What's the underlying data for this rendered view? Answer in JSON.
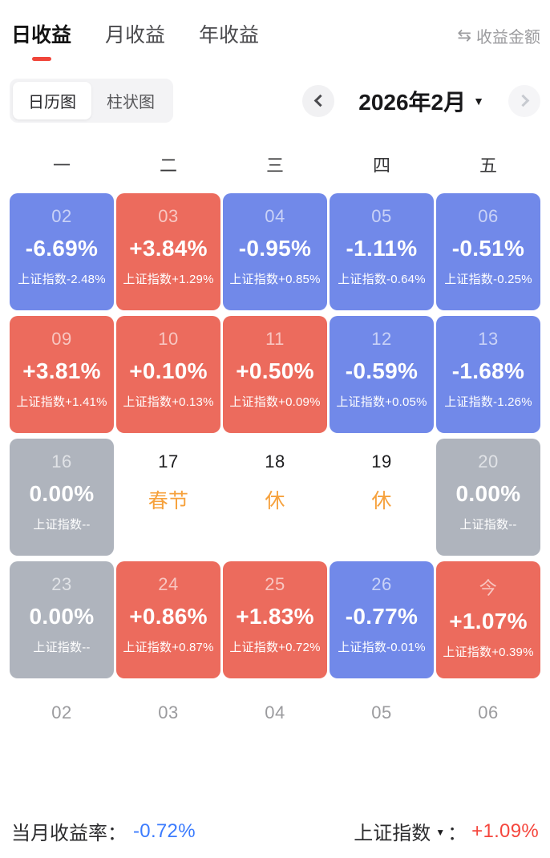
{
  "tabs": [
    {
      "label": "日收益",
      "active": true
    },
    {
      "label": "月收益",
      "active": false
    },
    {
      "label": "年收益",
      "active": false
    }
  ],
  "header": {
    "amount_toggle": {
      "icon_glyph": "⇆",
      "label": "收益金额"
    }
  },
  "view_toggle": {
    "options": [
      "日历图",
      "柱状图"
    ],
    "selected": 0
  },
  "month_nav": {
    "title": "2026年2月"
  },
  "calendar": {
    "weekday_headers": [
      "一",
      "二",
      "三",
      "四",
      "五"
    ],
    "rows": [
      [
        {
          "date": "02",
          "value": "-6.69%",
          "sub": "上证指数-2.48%",
          "type": "down"
        },
        {
          "date": "03",
          "value": "+3.84%",
          "sub": "上证指数+1.29%",
          "type": "up"
        },
        {
          "date": "04",
          "value": "-0.95%",
          "sub": "上证指数+0.85%",
          "type": "down"
        },
        {
          "date": "05",
          "value": "-1.11%",
          "sub": "上证指数-0.64%",
          "type": "down"
        },
        {
          "date": "06",
          "value": "-0.51%",
          "sub": "上证指数-0.25%",
          "type": "down"
        }
      ],
      [
        {
          "date": "09",
          "value": "+3.81%",
          "sub": "上证指数+1.41%",
          "type": "up"
        },
        {
          "date": "10",
          "value": "+0.10%",
          "sub": "上证指数+0.13%",
          "type": "up"
        },
        {
          "date": "11",
          "value": "+0.50%",
          "sub": "上证指数+0.09%",
          "type": "up"
        },
        {
          "date": "12",
          "value": "-0.59%",
          "sub": "上证指数+0.05%",
          "type": "down"
        },
        {
          "date": "13",
          "value": "-1.68%",
          "sub": "上证指数-1.26%",
          "type": "down"
        }
      ],
      [
        {
          "date": "16",
          "value": "0.00%",
          "sub": "上证指数--",
          "type": "flat"
        },
        {
          "date": "17",
          "label": "春节",
          "type": "holiday"
        },
        {
          "date": "18",
          "label": "休",
          "type": "holiday"
        },
        {
          "date": "19",
          "label": "休",
          "type": "holiday"
        },
        {
          "date": "20",
          "value": "0.00%",
          "sub": "上证指数--",
          "type": "flat"
        }
      ],
      [
        {
          "date": "23",
          "value": "0.00%",
          "sub": "上证指数--",
          "type": "flat"
        },
        {
          "date": "24",
          "value": "+0.86%",
          "sub": "上证指数+0.87%",
          "type": "up"
        },
        {
          "date": "25",
          "value": "+1.83%",
          "sub": "上证指数+0.72%",
          "type": "up"
        },
        {
          "date": "26",
          "value": "-0.77%",
          "sub": "上证指数-0.01%",
          "type": "down"
        },
        {
          "date": "今",
          "value": "+1.07%",
          "sub": "上证指数+0.39%",
          "type": "up"
        }
      ]
    ],
    "footer_dates": [
      "02",
      "03",
      "04",
      "05",
      "06"
    ]
  },
  "summary": {
    "left_label": "当月收益率：",
    "left_value": "-0.72%",
    "right_label": "上证指数",
    "right_colon": "：",
    "right_value": "+1.09%"
  },
  "colors": {
    "accent_red": "#F0453A",
    "cell_up": "#EC6B5D",
    "cell_down": "#7189E9",
    "cell_flat": "#AFB4BD",
    "holiday_orange": "#F6A13C",
    "summary_blue": "#3B7BFE",
    "summary_red": "#F5463D"
  }
}
